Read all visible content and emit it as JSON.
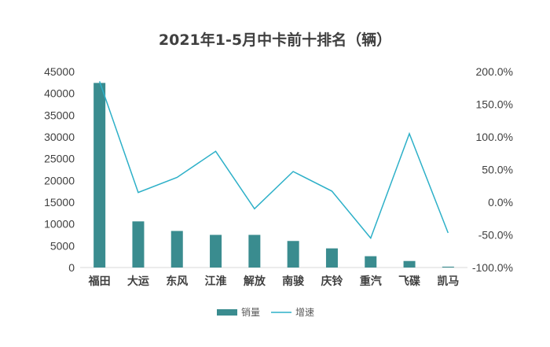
{
  "chart_data": {
    "type": "bar+line",
    "title": "2021年1-5月中卡前十排名（辆）",
    "categories": [
      "福田",
      "大运",
      "东风",
      "江淮",
      "解放",
      "南骏",
      "庆铃",
      "重汽",
      "飞碟",
      "凯马"
    ],
    "series": [
      {
        "name": "销量",
        "type": "bar",
        "axis": "left",
        "color": "#3A8C8F",
        "values": [
          42400,
          10600,
          8400,
          7500,
          7500,
          6100,
          4400,
          2600,
          1500,
          200
        ]
      },
      {
        "name": "增速",
        "type": "line",
        "axis": "right",
        "color": "#2DB0C8",
        "values": [
          1.85,
          0.15,
          0.38,
          0.78,
          -0.1,
          0.47,
          0.17,
          -0.55,
          1.05,
          -0.47
        ]
      }
    ],
    "y_left": {
      "min": 0,
      "max": 45000,
      "step": 5000,
      "ticks": [
        "0",
        "5000",
        "10000",
        "15000",
        "20000",
        "25000",
        "30000",
        "35000",
        "40000",
        "45000"
      ]
    },
    "y_right": {
      "min": -1.0,
      "max": 2.0,
      "step": 0.5,
      "ticks": [
        "-100.0%",
        "-50.0%",
        "0.0%",
        "50.0%",
        "100.0%",
        "150.0%",
        "200.0%"
      ]
    },
    "grid": false,
    "legend_position": "bottom"
  }
}
